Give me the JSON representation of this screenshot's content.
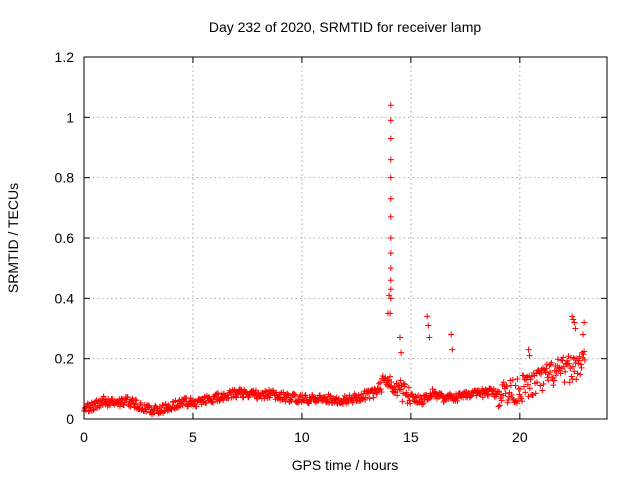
{
  "chart_data": {
    "type": "scatter",
    "title": "Day 232 of 2020, SRMTID for receiver lamp",
    "xlabel": "GPS time / hours",
    "ylabel": "SRMTID / TECUs",
    "xlim": [
      0,
      24
    ],
    "ylim": [
      0,
      1.2
    ],
    "xticks": [
      0,
      5,
      10,
      15,
      20
    ],
    "yticks": [
      0,
      0.2,
      0.4,
      0.6,
      0.8,
      1,
      1.2
    ],
    "ytick_labels": [
      "0",
      "0.2",
      "0.4",
      "0.6",
      "0.8",
      "1",
      "1.2"
    ],
    "grid": true,
    "marker": "+",
    "series_color": "#ff0000",
    "baseline": [
      [
        0.0,
        0.035
      ],
      [
        0.5,
        0.045
      ],
      [
        0.9,
        0.06
      ],
      [
        1.5,
        0.055
      ],
      [
        2.0,
        0.06
      ],
      [
        2.5,
        0.045
      ],
      [
        3.0,
        0.03
      ],
      [
        3.5,
        0.03
      ],
      [
        4.0,
        0.045
      ],
      [
        4.5,
        0.055
      ],
      [
        5.0,
        0.055
      ],
      [
        5.5,
        0.06
      ],
      [
        6.0,
        0.07
      ],
      [
        6.5,
        0.075
      ],
      [
        7.0,
        0.085
      ],
      [
        7.5,
        0.085
      ],
      [
        8.0,
        0.08
      ],
      [
        8.5,
        0.085
      ],
      [
        9.0,
        0.075
      ],
      [
        9.5,
        0.07
      ],
      [
        10.0,
        0.065
      ],
      [
        10.5,
        0.065
      ],
      [
        11.0,
        0.07
      ],
      [
        11.5,
        0.065
      ],
      [
        12.0,
        0.065
      ],
      [
        12.5,
        0.07
      ],
      [
        13.0,
        0.08
      ],
      [
        13.5,
        0.09
      ],
      [
        13.8,
        0.12
      ],
      [
        14.3,
        0.1
      ],
      [
        14.8,
        0.085
      ],
      [
        15.2,
        0.07
      ],
      [
        15.5,
        0.06
      ],
      [
        16.0,
        0.09
      ],
      [
        16.5,
        0.07
      ],
      [
        17.0,
        0.07
      ],
      [
        17.5,
        0.085
      ],
      [
        18.0,
        0.08
      ],
      [
        18.5,
        0.09
      ],
      [
        19.0,
        0.085
      ],
      [
        19.5,
        0.09
      ],
      [
        20.0,
        0.1
      ],
      [
        20.5,
        0.11
      ],
      [
        21.0,
        0.13
      ],
      [
        21.5,
        0.15
      ],
      [
        22.0,
        0.16
      ],
      [
        22.5,
        0.17
      ],
      [
        23.0,
        0.2
      ]
    ],
    "spikes": [
      [
        13.95,
        0.35
      ],
      [
        14.0,
        0.41
      ],
      [
        14.05,
        0.35
      ],
      [
        14.08,
        0.4
      ],
      [
        14.08,
        0.43
      ],
      [
        14.08,
        0.46
      ],
      [
        14.08,
        0.5
      ],
      [
        14.08,
        0.55
      ],
      [
        14.08,
        0.6
      ],
      [
        14.08,
        0.67
      ],
      [
        14.08,
        0.73
      ],
      [
        14.08,
        0.8
      ],
      [
        14.08,
        0.86
      ],
      [
        14.08,
        0.93
      ],
      [
        14.08,
        0.99
      ],
      [
        14.08,
        1.04
      ],
      [
        14.5,
        0.27
      ],
      [
        14.55,
        0.22
      ],
      [
        15.75,
        0.34
      ],
      [
        15.8,
        0.31
      ],
      [
        15.85,
        0.27
      ],
      [
        16.85,
        0.28
      ],
      [
        16.9,
        0.23
      ],
      [
        20.4,
        0.23
      ],
      [
        20.45,
        0.21
      ],
      [
        22.4,
        0.34
      ],
      [
        22.45,
        0.33
      ],
      [
        22.5,
        0.32
      ],
      [
        22.55,
        0.3
      ],
      [
        22.95,
        0.32
      ],
      [
        22.9,
        0.28
      ]
    ]
  }
}
